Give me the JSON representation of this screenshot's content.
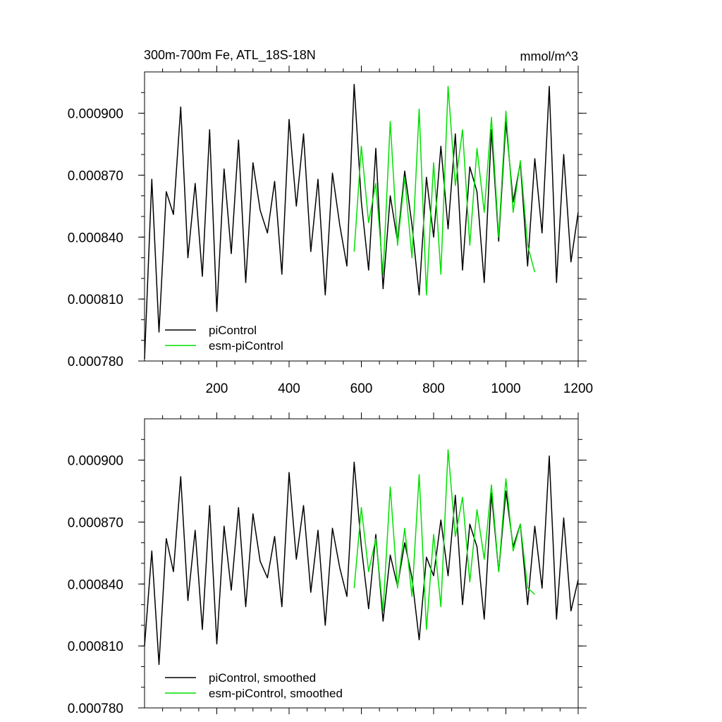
{
  "figure": {
    "title": "300m-700m Fe, ATL_18S-18N",
    "units": "mmol/m^3"
  },
  "colors": {
    "piControl": "#000000",
    "esm_piControl": "#00e000",
    "axes": "#000000"
  },
  "chart_data": [
    {
      "type": "line",
      "panel": "top",
      "title": "300m-700m Fe, ATL_18S-18N",
      "units_label": "mmol/m^3",
      "xlabel": "",
      "ylabel": "",
      "xlim": [
        0,
        1200
      ],
      "ylim": [
        0.00078,
        0.00092
      ],
      "xticks": [
        200,
        400,
        600,
        800,
        1000,
        1200
      ],
      "xtick_labels": [
        "200",
        "400",
        "600",
        "800",
        "1000",
        "1200"
      ],
      "yticks": [
        0.00078,
        0.00081,
        0.00084,
        0.00087,
        0.0009
      ],
      "ytick_labels": [
        "0.000780",
        "0.000810",
        "0.000840",
        "0.000870",
        "0.000900"
      ],
      "legend": {
        "placement": "bottom-left",
        "entries": [
          "piControl",
          "esm-piControl"
        ]
      },
      "series": [
        {
          "name": "piControl",
          "x": [
            0,
            20,
            40,
            60,
            80,
            100,
            120,
            140,
            160,
            180,
            200,
            220,
            240,
            260,
            280,
            300,
            320,
            340,
            360,
            380,
            400,
            420,
            440,
            460,
            480,
            500,
            520,
            540,
            560,
            580,
            600,
            620,
            640,
            660,
            680,
            700,
            720,
            740,
            760,
            780,
            800,
            820,
            840,
            860,
            880,
            900,
            920,
            940,
            960,
            980,
            1000,
            1020,
            1040,
            1060,
            1080,
            1100,
            1120,
            1140,
            1160,
            1180,
            1200
          ],
          "values": [
            0.000781,
            0.000868,
            0.000794,
            0.000862,
            0.000851,
            0.000903,
            0.00083,
            0.000866,
            0.000821,
            0.000892,
            0.000804,
            0.000873,
            0.000832,
            0.000887,
            0.000818,
            0.000876,
            0.000853,
            0.000842,
            0.000867,
            0.000822,
            0.000897,
            0.000855,
            0.00089,
            0.000833,
            0.000868,
            0.000812,
            0.000871,
            0.000846,
            0.000826,
            0.000914,
            0.000857,
            0.000824,
            0.000883,
            0.000815,
            0.00086,
            0.000838,
            0.000872,
            0.000846,
            0.000812,
            0.000869,
            0.00084,
            0.000884,
            0.000844,
            0.00089,
            0.000824,
            0.000874,
            0.000862,
            0.000818,
            0.000892,
            0.000838,
            0.000896,
            0.000857,
            0.000876,
            0.000826,
            0.000878,
            0.000842,
            0.000913,
            0.000818,
            0.00088,
            0.000828,
            0.000852
          ]
        },
        {
          "name": "esm-piControl",
          "x": [
            580,
            600,
            620,
            640,
            660,
            680,
            700,
            720,
            740,
            760,
            780,
            800,
            820,
            840,
            860,
            880,
            900,
            920,
            940,
            960,
            980,
            1000,
            1020,
            1040,
            1060,
            1080
          ],
          "values": [
            0.000833,
            0.000884,
            0.000847,
            0.000866,
            0.000822,
            0.000896,
            0.000836,
            0.000869,
            0.00083,
            0.000902,
            0.000812,
            0.000876,
            0.000822,
            0.000913,
            0.000865,
            0.000892,
            0.000836,
            0.000883,
            0.000852,
            0.000898,
            0.00084,
            0.000901,
            0.000852,
            0.000877,
            0.000836,
            0.000823
          ]
        }
      ]
    },
    {
      "type": "line",
      "panel": "bottom",
      "title": "",
      "xlabel": "",
      "ylabel": "",
      "xlim": [
        0,
        1200
      ],
      "ylim": [
        0.00078,
        0.00092
      ],
      "xticks": [
        200,
        400,
        600,
        800,
        1000,
        1200
      ],
      "xtick_labels": [],
      "yticks": [
        0.00078,
        0.00081,
        0.00084,
        0.00087,
        0.0009
      ],
      "ytick_labels": [
        "0.000780",
        "0.000810",
        "0.000840",
        "0.000870",
        "0.000900"
      ],
      "legend": {
        "placement": "bottom-left",
        "entries": [
          "piControl, smoothed",
          "esm-piControl, smoothed"
        ]
      },
      "series": [
        {
          "name": "piControl, smoothed",
          "x": [
            0,
            20,
            40,
            60,
            80,
            100,
            120,
            140,
            160,
            180,
            200,
            220,
            240,
            260,
            280,
            300,
            320,
            340,
            360,
            380,
            400,
            420,
            440,
            460,
            480,
            500,
            520,
            540,
            560,
            580,
            600,
            620,
            640,
            660,
            680,
            700,
            720,
            740,
            760,
            780,
            800,
            820,
            840,
            860,
            880,
            900,
            920,
            940,
            960,
            980,
            1000,
            1020,
            1040,
            1060,
            1080,
            1100,
            1120,
            1140,
            1160,
            1180,
            1200
          ],
          "values": [
            0.00081,
            0.000856,
            0.000801,
            0.000862,
            0.000846,
            0.000892,
            0.000832,
            0.000866,
            0.000818,
            0.000878,
            0.000811,
            0.000868,
            0.000837,
            0.000877,
            0.000829,
            0.000874,
            0.000851,
            0.000843,
            0.000863,
            0.000829,
            0.000894,
            0.000852,
            0.000878,
            0.000836,
            0.000866,
            0.00082,
            0.000867,
            0.000848,
            0.000834,
            0.000899,
            0.000858,
            0.000828,
            0.000864,
            0.000822,
            0.000854,
            0.000839,
            0.00086,
            0.000843,
            0.000813,
            0.000853,
            0.000844,
            0.000871,
            0.000844,
            0.000883,
            0.00083,
            0.000869,
            0.000858,
            0.000823,
            0.000884,
            0.000846,
            0.000885,
            0.000858,
            0.000869,
            0.00083,
            0.000868,
            0.000838,
            0.000902,
            0.000823,
            0.000872,
            0.000827,
            0.000842
          ]
        },
        {
          "name": "esm-piControl, smoothed",
          "x": [
            580,
            600,
            620,
            640,
            660,
            680,
            700,
            720,
            740,
            760,
            780,
            800,
            820,
            840,
            860,
            880,
            900,
            920,
            940,
            960,
            980,
            1000,
            1020,
            1040,
            1060,
            1080
          ],
          "values": [
            0.000838,
            0.000877,
            0.000846,
            0.000862,
            0.000827,
            0.000887,
            0.000838,
            0.000867,
            0.000834,
            0.000893,
            0.000818,
            0.000864,
            0.000829,
            0.000905,
            0.000863,
            0.000882,
            0.000841,
            0.000876,
            0.000852,
            0.000888,
            0.000846,
            0.000891,
            0.000856,
            0.000869,
            0.000838,
            0.000835
          ]
        }
      ]
    }
  ]
}
